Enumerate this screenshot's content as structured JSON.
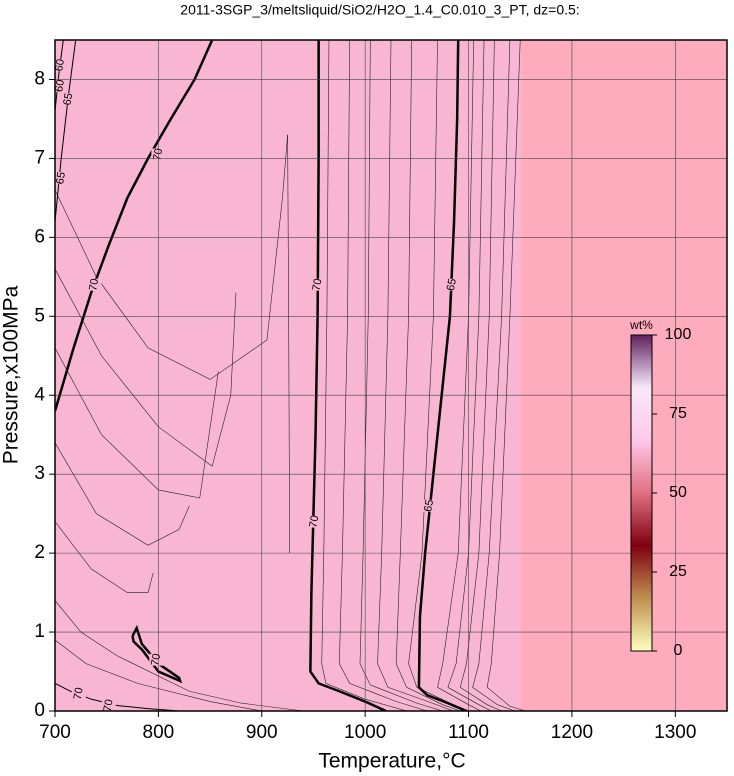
{
  "chart_data": {
    "type": "contour",
    "title": "2011-3SGP_3/meltsliquid/SiO2/H2O_1.4_C0.010_3_PT, dz=0.5:",
    "x_label": "Temperature,°C",
    "y_label": "Pressure,x100MPa",
    "xlim": [
      700,
      1350
    ],
    "ylim": [
      0,
      8.5
    ],
    "xticks": [
      700,
      800,
      900,
      1000,
      1100,
      1200,
      1300
    ],
    "yticks": [
      0,
      1,
      2,
      3,
      4,
      5,
      6,
      7,
      8
    ],
    "grid": true,
    "fill_colors": [
      "#f9b6d2",
      "#fdabbd"
    ],
    "fill_split_x": 1150,
    "contours": [
      {
        "level": 70,
        "bold": true,
        "x": [
          700,
          718,
          735,
          752,
          770,
          790,
          812,
          835,
          852
        ],
        "y": [
          3.8,
          4.6,
          5.3,
          5.9,
          6.5,
          7.0,
          7.5,
          8.0,
          8.5
        ],
        "label_x": [
          738,
          800
        ],
        "label_y": [
          5.4,
          7.05
        ]
      },
      {
        "level": 70,
        "bold": true,
        "x": [
          955,
          955,
          954,
          952,
          950,
          948,
          947,
          955,
          975,
          1000,
          1020
        ],
        "y": [
          8.5,
          7.0,
          5.0,
          3.5,
          2.5,
          1.5,
          0.5,
          0.35,
          0.25,
          0.12,
          0.0
        ],
        "label_x": [
          954,
          951
        ],
        "label_y": [
          5.4,
          2.4
        ]
      },
      {
        "level": 65,
        "bold": true,
        "x": [
          1090,
          1089,
          1086,
          1082,
          1074,
          1066,
          1058,
          1053,
          1052,
          1060,
          1080,
          1098
        ],
        "y": [
          8.5,
          7.5,
          6.2,
          5.0,
          4.0,
          3.0,
          2.0,
          1.2,
          0.3,
          0.2,
          0.1,
          0.0
        ],
        "label_x": [
          1084,
          1062
        ],
        "label_y": [
          5.4,
          2.6
        ]
      },
      {
        "level": 70,
        "bold": true,
        "x": [
          775,
          779,
          784,
          800,
          820,
          821,
          800,
          784,
          776,
          775
        ],
        "y": [
          0.95,
          1.05,
          0.85,
          0.6,
          0.42,
          0.38,
          0.5,
          0.78,
          0.88,
          0.95
        ],
        "label_x": [
          798
        ],
        "label_y": [
          0.65
        ]
      },
      {
        "level": 70,
        "bold": false,
        "x": [
          700,
          715,
          735,
          760,
          790,
          820
        ],
        "y": [
          0.35,
          0.25,
          0.15,
          0.07,
          0.03,
          0.0
        ],
        "label_x": [
          723,
          752
        ],
        "label_y": [
          0.22,
          0.07
        ]
      },
      {
        "level": 65,
        "bold": false,
        "x": [
          700,
          706,
          713,
          720
        ],
        "y": [
          6.2,
          7.0,
          7.8,
          8.5
        ],
        "label_x": [
          706,
          713
        ],
        "label_y": [
          6.75,
          7.75
        ]
      },
      {
        "level": 60,
        "bold": false,
        "x": [
          700,
          704,
          708
        ],
        "y": [
          7.6,
          8.1,
          8.5
        ],
        "label_x": [
          705,
          705
        ],
        "label_y": [
          8.18,
          7.92
        ]
      }
    ],
    "thin_contours": [
      {
        "x": [
          965,
          963,
          960,
          958,
          962,
          1000,
          1040
        ],
        "y": [
          8.5,
          5.0,
          2.0,
          0.6,
          0.35,
          0.15,
          0.0
        ]
      },
      {
        "x": [
          985,
          983,
          978,
          975,
          985,
          1030,
          1060
        ],
        "y": [
          8.5,
          5.0,
          2.0,
          0.6,
          0.35,
          0.12,
          0.0
        ]
      },
      {
        "x": [
          1005,
          1003,
          998,
          995,
          1005,
          1050,
          1075
        ],
        "y": [
          8.5,
          5.0,
          2.0,
          0.6,
          0.33,
          0.1,
          0.0
        ]
      },
      {
        "x": [
          1025,
          1022,
          1016,
          1012,
          1022,
          1065,
          1085
        ],
        "y": [
          8.5,
          5.0,
          2.0,
          0.6,
          0.3,
          0.1,
          0.0
        ]
      },
      {
        "x": [
          1045,
          1042,
          1034,
          1030,
          1040,
          1075,
          1092
        ],
        "y": [
          8.5,
          5.0,
          2.0,
          0.6,
          0.3,
          0.08,
          0.0
        ]
      },
      {
        "x": [
          1070,
          1066,
          1055,
          1042,
          1050,
          1085,
          1100
        ],
        "y": [
          8.5,
          5.0,
          2.0,
          0.6,
          0.3,
          0.08,
          0.0
        ]
      },
      {
        "x": [
          1105,
          1100,
          1090,
          1075,
          1070,
          1100,
          1112
        ],
        "y": [
          8.5,
          5.0,
          2.0,
          0.6,
          0.3,
          0.08,
          0.0
        ]
      },
      {
        "x": [
          1115,
          1110,
          1100,
          1088,
          1080,
          1110,
          1122
        ],
        "y": [
          8.5,
          5.0,
          2.0,
          0.6,
          0.3,
          0.08,
          0.0
        ]
      },
      {
        "x": [
          1125,
          1120,
          1110,
          1098,
          1092,
          1118,
          1132
        ],
        "y": [
          8.5,
          5.0,
          2.0,
          0.6,
          0.3,
          0.08,
          0.0
        ]
      },
      {
        "x": [
          1140,
          1132,
          1120,
          1110,
          1104,
          1128,
          1145
        ],
        "y": [
          8.5,
          5.0,
          2.0,
          0.6,
          0.3,
          0.08,
          0.0
        ]
      },
      {
        "x": [
          1150,
          1140,
          1130,
          1122,
          1118,
          1140,
          1155
        ],
        "y": [
          8.5,
          5.0,
          2.0,
          0.6,
          0.3,
          0.06,
          0.0
        ]
      },
      {
        "x": [
          925,
          926,
          927
        ],
        "y": [
          7.3,
          5.0,
          2.0
        ]
      },
      {
        "x": [
          700,
          740,
          790,
          850,
          905,
          920,
          925
        ],
        "y": [
          6.6,
          5.5,
          4.6,
          4.2,
          4.7,
          6.5,
          7.3
        ]
      },
      {
        "x": [
          700,
          745,
          800,
          852,
          870,
          875
        ],
        "y": [
          5.6,
          4.5,
          3.6,
          3.1,
          4.0,
          5.3
        ]
      },
      {
        "x": [
          700,
          745,
          800,
          840,
          858
        ],
        "y": [
          4.6,
          3.5,
          2.8,
          2.7,
          4.3
        ]
      },
      {
        "x": [
          700,
          740,
          790,
          820,
          830
        ],
        "y": [
          3.4,
          2.5,
          2.1,
          2.3,
          2.6
        ]
      },
      {
        "x": [
          700,
          735,
          770,
          790,
          795
        ],
        "y": [
          2.4,
          1.8,
          1.5,
          1.5,
          1.75
        ]
      },
      {
        "x": [
          700,
          725,
          760,
          830,
          880,
          940
        ],
        "y": [
          1.4,
          1.0,
          0.7,
          0.25,
          0.1,
          0.0
        ]
      },
      {
        "x": [
          700,
          730,
          780,
          850,
          900
        ],
        "y": [
          0.9,
          0.6,
          0.35,
          0.12,
          0.0
        ]
      }
    ],
    "colorbar": {
      "label": "wt%",
      "lim": [
        0,
        100
      ],
      "ticks": [
        0,
        25,
        50,
        75,
        100
      ],
      "colors": [
        "#ffffc0",
        "#c09050",
        "#800010",
        "#e07080",
        "#ffc8e8",
        "#f8e8f8",
        "#602060"
      ]
    }
  }
}
